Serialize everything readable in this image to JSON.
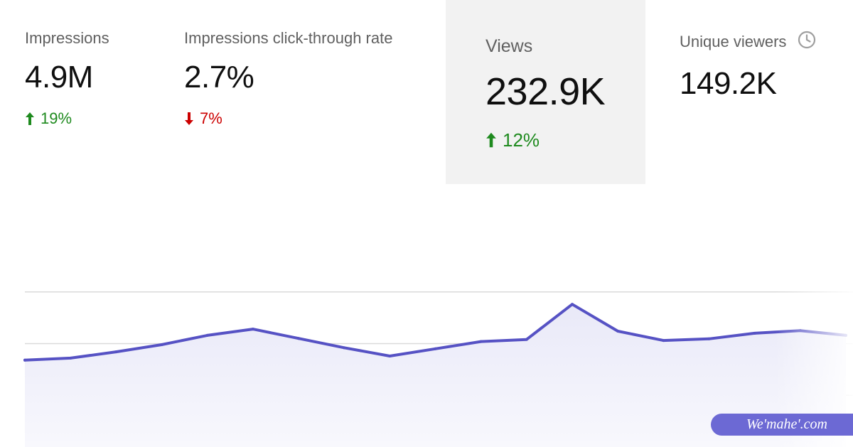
{
  "metrics": {
    "impressions": {
      "label": "Impressions",
      "value": "4.9M",
      "change": "19%",
      "direction": "up"
    },
    "ctr": {
      "label": "Impressions click-through rate",
      "value": "2.7%",
      "change": "7%",
      "direction": "down"
    },
    "views": {
      "label": "Views",
      "value": "232.9K",
      "change": "12%",
      "direction": "up",
      "selected": true
    },
    "unique_viewers": {
      "label": "Unique viewers",
      "value": "149.2K",
      "icon": "clock-icon"
    }
  },
  "colors": {
    "up": "#1e8a1e",
    "down": "#cc0000",
    "line": "#5652c4",
    "area": "#eeeef9",
    "gridline": "#dadada",
    "selected_bg": "#f2f2f2",
    "watermark_bg": "#6c69d4"
  },
  "chart_data": {
    "type": "area",
    "series": [
      {
        "values": [
          42,
          43,
          46,
          49.5,
          54,
          57,
          52.5,
          48,
          44,
          47.5,
          51,
          52,
          69,
          56,
          51.5,
          52.3,
          55,
          56.3,
          54
        ]
      }
    ],
    "ylim": [
      0,
      100
    ],
    "grid": true,
    "gridlines": [
      75,
      50,
      25
    ]
  },
  "watermark": {
    "text": "We'mahe'.com"
  }
}
